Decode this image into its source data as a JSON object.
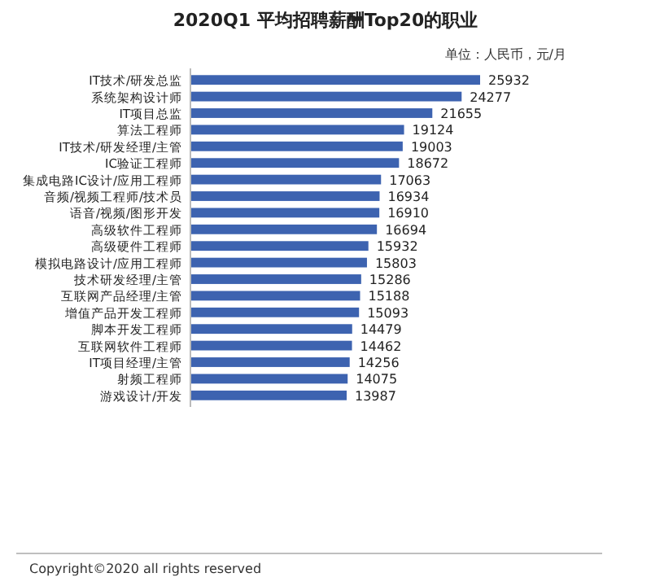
{
  "chart_data": {
    "type": "bar",
    "orientation": "horizontal",
    "title": "2020Q1 平均招聘薪酬Top20的职业",
    "annotations": [
      "单位：人民币，元/月",
      "Copyright©2020 all rights reserved"
    ],
    "categories": [
      "IT技术/研发总监",
      "系统架构设计师",
      "IT项目总监",
      "算法工程师",
      "IT技术/研发经理/主管",
      "IC验证工程师",
      "集成电路IC设计/应用工程师",
      "音频/视频工程师/技术员",
      "语音/视频/图形开发",
      "高级软件工程师",
      "高级硬件工程师",
      "模拟电路设计/应用工程师",
      "技术研发经理/主管",
      "互联网产品经理/主管",
      "增值产品开发工程师",
      "脚本开发工程师",
      "互联网软件工程师",
      "IT项目经理/主管",
      "射频工程师",
      "游戏设计/开发"
    ],
    "values": [
      25932,
      24277,
      21655,
      19124,
      19003,
      18672,
      17063,
      16934,
      16910,
      16694,
      15932,
      15803,
      15286,
      15188,
      15093,
      14479,
      14462,
      14256,
      14075,
      13987
    ],
    "color": "#3d63b0",
    "data_labels": true
  }
}
